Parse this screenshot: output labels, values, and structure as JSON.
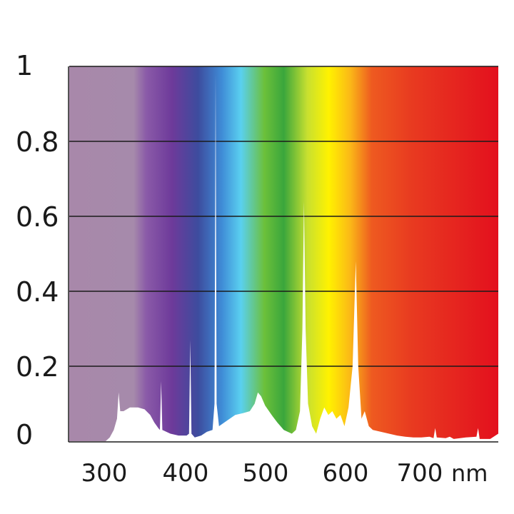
{
  "chart_data": {
    "type": "area",
    "title": "",
    "xlabel": "",
    "ylabel": "",
    "x_unit": "nm",
    "xlim": [
      255,
      785
    ],
    "ylim": [
      0,
      1
    ],
    "x_ticks": [
      "300",
      "400",
      "500",
      "600",
      "700"
    ],
    "y_ticks": [
      "0",
      "0.2",
      "0.4",
      "0.6",
      "0.8",
      "1"
    ],
    "grid": true,
    "background": "visible spectrum color band",
    "series": [
      {
        "color": "#ffffff",
        "points": [
          [
            300,
            0
          ],
          [
            305,
            0.01
          ],
          [
            310,
            0.03
          ],
          [
            314,
            0.06
          ],
          [
            316,
            0.13
          ],
          [
            318,
            0.08
          ],
          [
            322,
            0.08
          ],
          [
            330,
            0.09
          ],
          [
            340,
            0.09
          ],
          [
            348,
            0.085
          ],
          [
            355,
            0.07
          ],
          [
            360,
            0.05
          ],
          [
            365,
            0.035
          ],
          [
            367,
            0.03
          ],
          [
            368.5,
            0.16
          ],
          [
            370,
            0.03
          ],
          [
            380,
            0.02
          ],
          [
            390,
            0.015
          ],
          [
            400,
            0.015
          ],
          [
            403,
            0.02
          ],
          [
            404.5,
            0.27
          ],
          [
            406,
            0.02
          ],
          [
            410,
            0.01
          ],
          [
            418,
            0.015
          ],
          [
            425,
            0.025
          ],
          [
            432,
            0.03
          ],
          [
            434.5,
            0.1
          ],
          [
            435.8,
            0.98
          ],
          [
            437,
            0.1
          ],
          [
            440,
            0.04
          ],
          [
            450,
            0.055
          ],
          [
            460,
            0.07
          ],
          [
            470,
            0.075
          ],
          [
            478,
            0.08
          ],
          [
            484,
            0.1
          ],
          [
            488,
            0.13
          ],
          [
            492,
            0.12
          ],
          [
            497,
            0.095
          ],
          [
            505,
            0.07
          ],
          [
            512,
            0.05
          ],
          [
            520,
            0.03
          ],
          [
            530,
            0.02
          ],
          [
            535,
            0.03
          ],
          [
            540,
            0.08
          ],
          [
            543,
            0.3
          ],
          [
            545,
            0.64
          ],
          [
            547,
            0.3
          ],
          [
            550,
            0.1
          ],
          [
            555,
            0.04
          ],
          [
            560,
            0.02
          ],
          [
            565,
            0.06
          ],
          [
            570,
            0.09
          ],
          [
            575,
            0.07
          ],
          [
            580,
            0.08
          ],
          [
            585,
            0.06
          ],
          [
            590,
            0.07
          ],
          [
            595,
            0.04
          ],
          [
            600,
            0.09
          ],
          [
            605,
            0.2
          ],
          [
            609,
            0.48
          ],
          [
            612,
            0.2
          ],
          [
            616,
            0.06
          ],
          [
            620,
            0.08
          ],
          [
            625,
            0.04
          ],
          [
            630,
            0.03
          ],
          [
            640,
            0.025
          ],
          [
            650,
            0.02
          ],
          [
            660,
            0.015
          ],
          [
            670,
            0.012
          ],
          [
            680,
            0.01
          ],
          [
            690,
            0.01
          ],
          [
            700,
            0.012
          ],
          [
            705,
            0.008
          ],
          [
            707,
            0.035
          ],
          [
            709,
            0.01
          ],
          [
            720,
            0.008
          ],
          [
            725,
            0.012
          ],
          [
            730,
            0.006
          ],
          [
            745,
            0.01
          ],
          [
            758,
            0.012
          ],
          [
            760,
            0.035
          ],
          [
            762,
            0.006
          ],
          [
            775,
            0.006
          ],
          [
            785,
            0.02
          ]
        ]
      }
    ]
  }
}
